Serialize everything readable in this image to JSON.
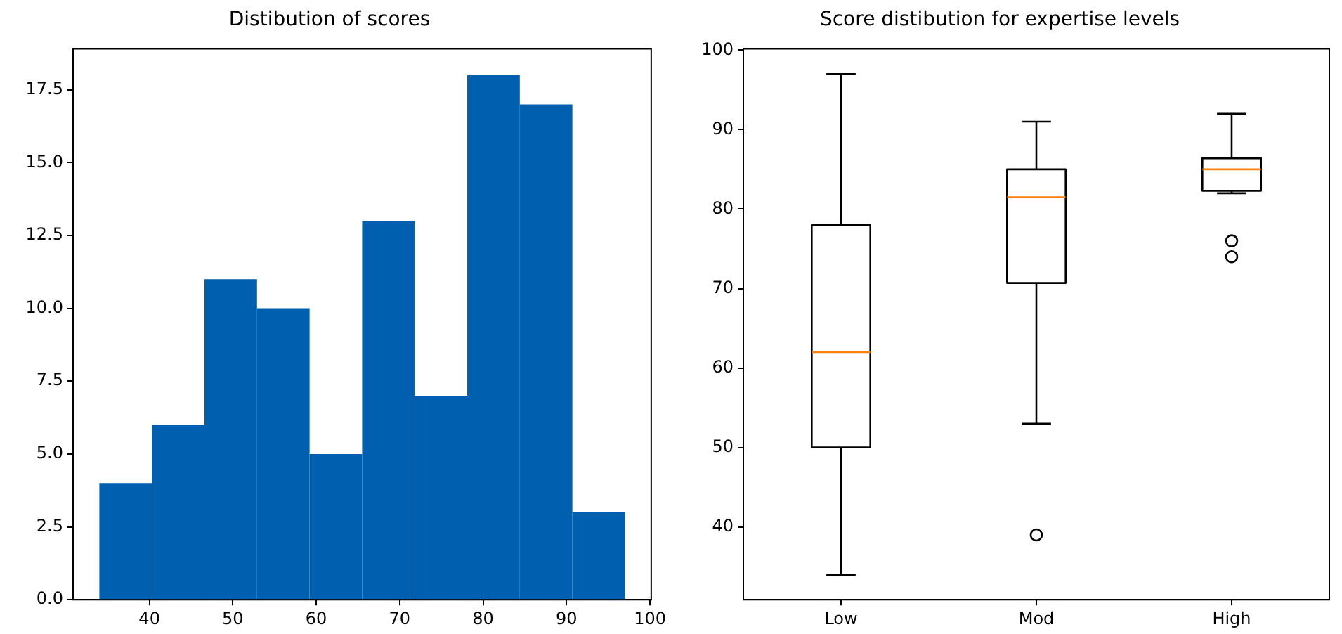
{
  "chart_data": [
    {
      "type": "histogram",
      "title": "Distibution of scores",
      "bins": [
        34,
        40.3,
        46.6,
        52.9,
        59.2,
        65.5,
        71.8,
        78.1,
        84.4,
        90.7,
        97
      ],
      "values": [
        4,
        6,
        11,
        10,
        5,
        13,
        7,
        18,
        17,
        3
      ],
      "color": "#005fae",
      "xlim": [
        30.85,
        100.15
      ],
      "xticks": [
        40,
        50,
        60,
        70,
        80,
        90,
        100
      ],
      "ylim": [
        0,
        18.9
      ],
      "yticks": [
        {
          "value": 0,
          "label": "0.0"
        },
        {
          "value": 2.5,
          "label": "2.5"
        },
        {
          "value": 5,
          "label": "5.0"
        },
        {
          "value": 7.5,
          "label": "7.5"
        },
        {
          "value": 10,
          "label": "10.0"
        },
        {
          "value": 12.5,
          "label": "12.5"
        },
        {
          "value": 15,
          "label": "15.0"
        },
        {
          "value": 17.5,
          "label": "17.5"
        }
      ],
      "grid": false,
      "legend": false
    },
    {
      "type": "box",
      "title": "Score distibution for expertise levels",
      "categories": [
        "Low",
        "Mod",
        "High"
      ],
      "ylim": [
        30.85,
        100.15
      ],
      "yticks": [
        40,
        50,
        60,
        70,
        80,
        90,
        100
      ],
      "grid": false,
      "legend": false,
      "series": [
        {
          "color": "#000000",
          "boxes": [
            {
              "low": 34,
              "q1": 50,
              "median": 62,
              "q3": 78,
              "high": 97
            },
            {
              "low": 53,
              "q1": 70.7,
              "median": 81.5,
              "q3": 85,
              "high": 91,
              "outliers": [
                39
              ]
            },
            {
              "low": 82,
              "q1": 82.3,
              "median": 85,
              "q3": 86.4,
              "high": 92,
              "outliers": [
                76,
                74
              ]
            }
          ]
        }
      ]
    }
  ]
}
